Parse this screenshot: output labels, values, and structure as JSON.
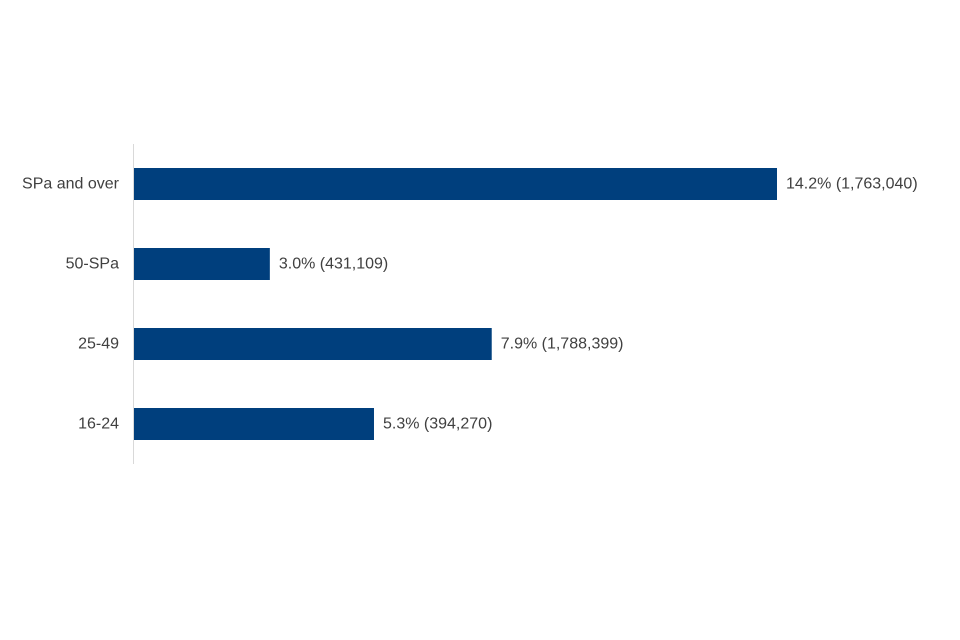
{
  "chart_data": {
    "type": "bar",
    "orientation": "horizontal",
    "categories": [
      "SPa and over",
      "50-SPa",
      "25-49",
      "16-24"
    ],
    "values": [
      14.2,
      3.0,
      7.9,
      5.3
    ],
    "data_labels": [
      "14.2% (1,763,040)",
      "3.0% (431,109)",
      "7.9% (1,788,399)",
      "5.3% (394,270)"
    ],
    "xlim": [
      0,
      14.2
    ],
    "grid": false,
    "legend": "none",
    "bar_color": "#003F7D",
    "axis_color": "#D9D9D9",
    "text_color": "#404040"
  }
}
